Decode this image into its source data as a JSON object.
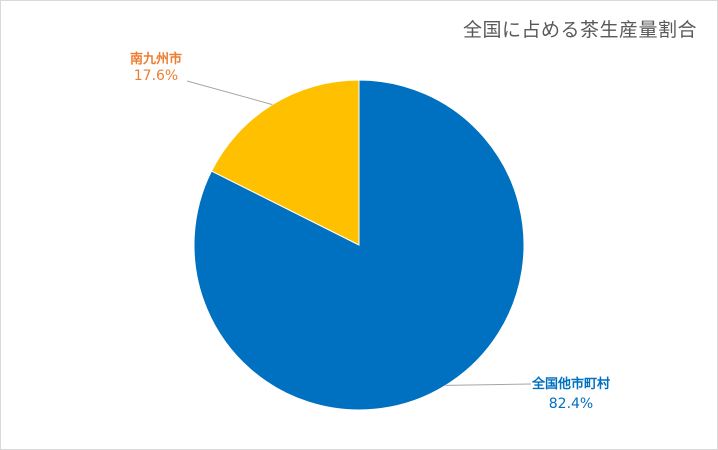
{
  "chart_data": {
    "type": "pie",
    "title": "全国に占める茶生産量割合",
    "slices": [
      {
        "label": "全国他市町村",
        "value": 82.4,
        "value_label": "82.4%",
        "color": "#0070C0"
      },
      {
        "label": "南九州市",
        "value": 17.6,
        "value_label": "17.6%",
        "color": "#FFC000"
      }
    ],
    "start_angle_deg": 0,
    "direction": "clockwise",
    "legend": "none"
  }
}
